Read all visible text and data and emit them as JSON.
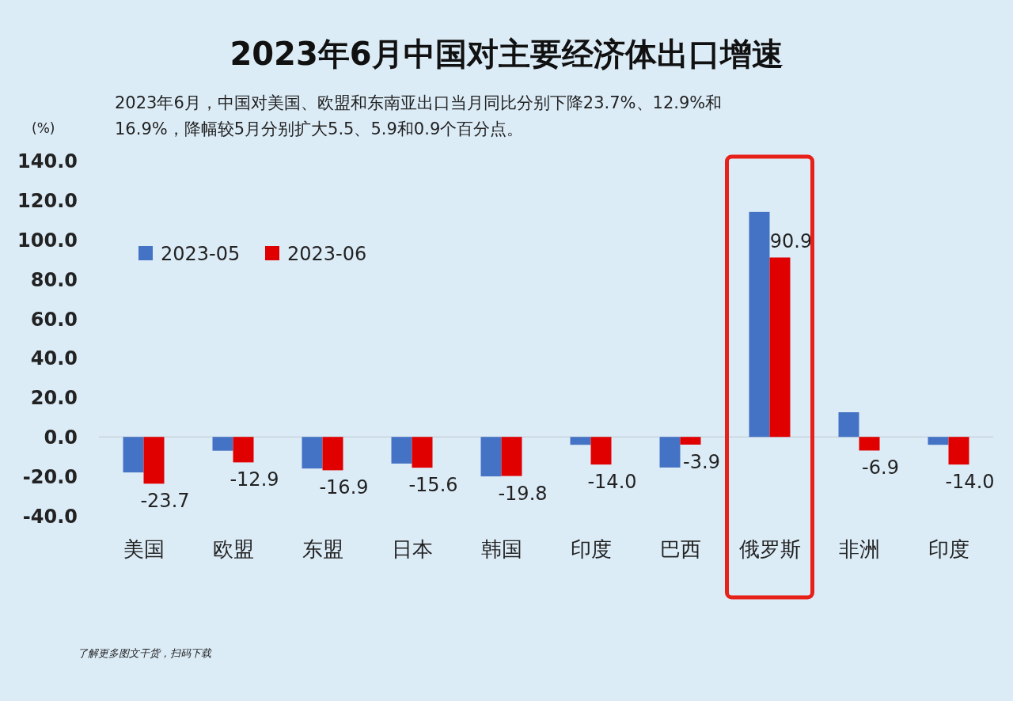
{
  "chart_data": {
    "type": "bar",
    "title": "2023年6月中国对主要经济体出口增速",
    "subtitle": "2023年6月，中国对美国、欧盟和东南亚出口当月同比分别下降23.7%、12.9%和16.9%，降幅较5月分别扩大5.5、5.9和0.9个百分点。",
    "ylabel": "(%)",
    "categories": [
      "美国",
      "欧盟",
      "东盟",
      "日本",
      "韩国",
      "印度",
      "巴西",
      "俄罗斯",
      "非洲",
      "印度"
    ],
    "series": [
      {
        "name": "2023-05",
        "color": "#4472c4",
        "values": [
          -18,
          -7,
          -16,
          -13.5,
          -20,
          -4,
          -15.5,
          114,
          12.5,
          -4
        ]
      },
      {
        "name": "2023-06",
        "color": "#e00000",
        "values": [
          -23.7,
          -12.9,
          -16.9,
          -15.6,
          -19.8,
          -14.0,
          -3.9,
          90.9,
          -6.9,
          -14.0
        ],
        "value_labels": [
          "-23.7",
          "-12.9",
          "-16.9",
          "-15.6",
          "-19.8",
          "-14.0",
          "-3.9",
          "90.9",
          "-6.9",
          "-14.0"
        ]
      }
    ],
    "ylim": [
      -40,
      140
    ],
    "yticks": [
      {
        "value": 140,
        "label": "140.0"
      },
      {
        "value": 120,
        "label": "120.0"
      },
      {
        "value": 100,
        "label": "100.0"
      },
      {
        "value": 80,
        "label": "80.0"
      },
      {
        "value": 60,
        "label": "60.0"
      },
      {
        "value": 40,
        "label": "40.0"
      },
      {
        "value": 20,
        "label": "20.0"
      },
      {
        "value": 0,
        "label": "0.0"
      },
      {
        "value": -20,
        "label": "-20.0"
      },
      {
        "value": -40,
        "label": "-40.0"
      }
    ],
    "legend": "top left",
    "annotations": [
      "了解更多图文干货，扫码下载"
    ]
  }
}
